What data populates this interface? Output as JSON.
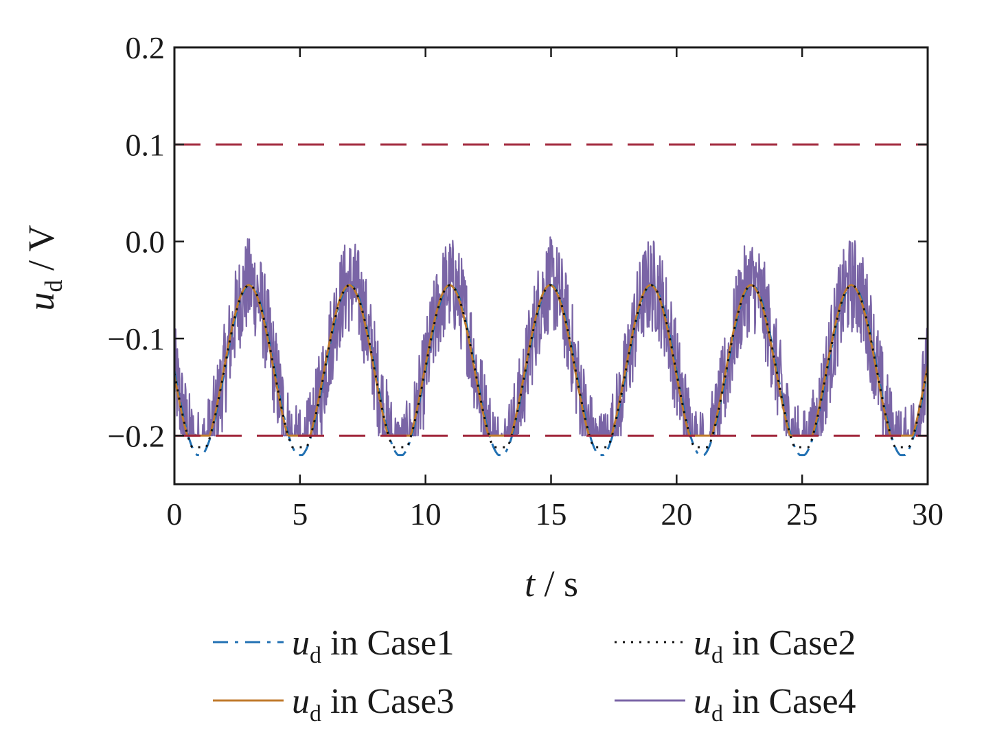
{
  "chart_data": {
    "type": "line",
    "xlabel": {
      "var": "t",
      "unit": " / s"
    },
    "ylabel": {
      "var": "u",
      "sub": "d",
      "unit": " / V"
    },
    "xlim": [
      0,
      30
    ],
    "ylim": [
      -0.25,
      0.2
    ],
    "x_ticks": [
      0,
      5,
      10,
      15,
      20,
      25,
      30
    ],
    "x_tick_labels": [
      "0",
      "5",
      "10",
      "15",
      "20",
      "25",
      "30"
    ],
    "y_ticks": [
      0.2,
      0.1,
      0.0,
      -0.1,
      -0.2
    ],
    "y_tick_labels": [
      "0.2",
      "0.1",
      "0.0",
      "−0.1",
      "−0.2"
    ],
    "grid": false,
    "legend_position": "bottom",
    "bounds": [
      {
        "name": "upper-bound",
        "value": 0.1,
        "color": "#a0253a",
        "style": "dashed"
      },
      {
        "name": "lower-bound",
        "value": -0.2,
        "color": "#a0253a",
        "style": "dashed"
      }
    ],
    "signal": {
      "period": 4,
      "mean": -0.133,
      "amplitude": 0.088,
      "peak_times": [
        3,
        7,
        11,
        15,
        19,
        23,
        27
      ],
      "trough": -0.22,
      "noise_amplitude_case4": 0.05
    },
    "series": [
      {
        "name": "Case1",
        "legend_var": "u",
        "legend_sub": "d",
        "legend_rest": " in Case1",
        "color": "#2271b3",
        "style": "dashdot"
      },
      {
        "name": "Case2",
        "legend_var": "u",
        "legend_sub": "d",
        "legend_rest": " in Case2",
        "color": "#111111",
        "style": "dotted"
      },
      {
        "name": "Case3",
        "legend_var": "u",
        "legend_sub": "d",
        "legend_rest": " in Case3",
        "color": "#c07a2c",
        "style": "solid"
      },
      {
        "name": "Case4",
        "legend_var": "u",
        "legend_sub": "d",
        "legend_rest": " in Case4",
        "color": "#7a65a6",
        "style": "solid"
      }
    ]
  }
}
